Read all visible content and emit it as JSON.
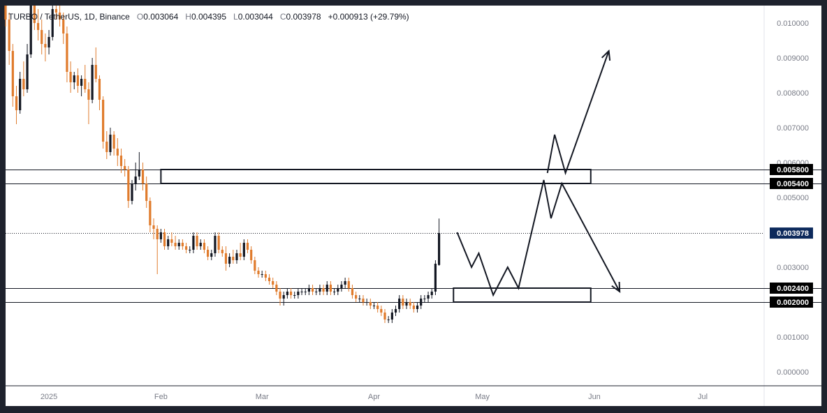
{
  "header": {
    "symbol": "TURBO / TetherUS, 1D, Binance",
    "o_label": "O",
    "o": "0.003064",
    "h_label": "H",
    "h": "0.004395",
    "l_label": "L",
    "l": "0.003044",
    "c_label": "C",
    "c": "0.003978",
    "change": "+0.000913 (+29.79%)"
  },
  "colors": {
    "up": "#131722",
    "down": "#e07b2c",
    "bg": "#ffffff",
    "frame": "#1e222d",
    "last_price": "#0d2a5c"
  },
  "chart_data": {
    "type": "candlestick",
    "title": "TURBO / TetherUS, 1D, Binance",
    "y_axis": {
      "min": -0.0004,
      "max": 0.0105,
      "ticks": [
        "0.000000",
        "0.001000",
        "0.002000",
        "0.003000",
        "0.004000",
        "0.005000",
        "0.006000",
        "0.007000",
        "0.008000",
        "0.009000",
        "0.010000"
      ]
    },
    "x_axis": {
      "start": "2024-12-20",
      "end": "2025-07-18",
      "ticks": [
        {
          "label": "2025",
          "date": "2025-01-01"
        },
        {
          "label": "Feb",
          "date": "2025-02-01"
        },
        {
          "label": "Mar",
          "date": "2025-03-01"
        },
        {
          "label": "Apr",
          "date": "2025-04-01"
        },
        {
          "label": "May",
          "date": "2025-05-01"
        },
        {
          "label": "Jun",
          "date": "2025-06-01"
        },
        {
          "label": "Jul",
          "date": "2025-07-01"
        }
      ]
    },
    "candles_start_date": "2024-12-20",
    "candles": [
      [
        0.0112,
        0.0116,
        0.0099,
        0.0101
      ],
      [
        0.0101,
        0.0103,
        0.0088,
        0.0092
      ],
      [
        0.0092,
        0.0094,
        0.0076,
        0.0079
      ],
      [
        0.0079,
        0.0082,
        0.0071,
        0.0075
      ],
      [
        0.0075,
        0.0086,
        0.0074,
        0.0084
      ],
      [
        0.0084,
        0.0089,
        0.0079,
        0.0081
      ],
      [
        0.0081,
        0.0094,
        0.008,
        0.0091
      ],
      [
        0.0091,
        0.0108,
        0.009,
        0.0105
      ],
      [
        0.0105,
        0.0113,
        0.0098,
        0.01
      ],
      [
        0.01,
        0.0104,
        0.0095,
        0.0098
      ],
      [
        0.0098,
        0.0101,
        0.0091,
        0.0094
      ],
      [
        0.0094,
        0.0097,
        0.0089,
        0.0093
      ],
      [
        0.0093,
        0.0098,
        0.0091,
        0.0096
      ],
      [
        0.0096,
        0.0107,
        0.0095,
        0.0104
      ],
      [
        0.0104,
        0.011,
        0.0101,
        0.0103
      ],
      [
        0.0103,
        0.0105,
        0.0099,
        0.0101
      ],
      [
        0.0101,
        0.0103,
        0.0094,
        0.0097
      ],
      [
        0.0097,
        0.0099,
        0.0083,
        0.0086
      ],
      [
        0.0086,
        0.0089,
        0.008,
        0.0083
      ],
      [
        0.0083,
        0.0086,
        0.0081,
        0.0085
      ],
      [
        0.0085,
        0.0087,
        0.008,
        0.0082
      ],
      [
        0.0082,
        0.0085,
        0.0079,
        0.0084
      ],
      [
        0.0084,
        0.0088,
        0.008,
        0.0081
      ],
      [
        0.0081,
        0.0083,
        0.0071,
        0.0078
      ],
      [
        0.0078,
        0.009,
        0.0077,
        0.0088
      ],
      [
        0.0088,
        0.0093,
        0.0083,
        0.0084
      ],
      [
        0.0084,
        0.0085,
        0.0075,
        0.0078
      ],
      [
        0.0078,
        0.0079,
        0.0064,
        0.0066
      ],
      [
        0.0066,
        0.0069,
        0.0061,
        0.0063
      ],
      [
        0.0063,
        0.007,
        0.0062,
        0.0068
      ],
      [
        0.0068,
        0.0069,
        0.0062,
        0.0064
      ],
      [
        0.0064,
        0.0067,
        0.0059,
        0.0062
      ],
      [
        0.0062,
        0.0064,
        0.0057,
        0.0059
      ],
      [
        0.0059,
        0.0061,
        0.0056,
        0.0058
      ],
      [
        0.0058,
        0.0059,
        0.0047,
        0.0049
      ],
      [
        0.0049,
        0.0055,
        0.0048,
        0.0054
      ],
      [
        0.0054,
        0.006,
        0.0052,
        0.0056
      ],
      [
        0.0056,
        0.0063,
        0.0055,
        0.0058
      ],
      [
        0.0058,
        0.006,
        0.0052,
        0.0054
      ],
      [
        0.0054,
        0.0056,
        0.0047,
        0.0049
      ],
      [
        0.0049,
        0.005,
        0.004,
        0.0042
      ],
      [
        0.0042,
        0.0044,
        0.0038,
        0.0041
      ],
      [
        0.0041,
        0.0042,
        0.0028,
        0.0038
      ],
      [
        0.0038,
        0.0041,
        0.0037,
        0.004
      ],
      [
        0.004,
        0.0041,
        0.0035,
        0.0036
      ],
      [
        0.0036,
        0.0039,
        0.0035,
        0.0038
      ],
      [
        0.0038,
        0.004,
        0.0036,
        0.0037
      ],
      [
        0.0037,
        0.0039,
        0.0035,
        0.0036
      ],
      [
        0.0036,
        0.0038,
        0.0035,
        0.0037
      ],
      [
        0.0037,
        0.0038,
        0.0035,
        0.0036
      ],
      [
        0.0036,
        0.0037,
        0.0034,
        0.0035
      ],
      [
        0.0035,
        0.0036,
        0.0034,
        0.0035
      ],
      [
        0.0035,
        0.004,
        0.0034,
        0.0039
      ],
      [
        0.0039,
        0.004,
        0.0035,
        0.0036
      ],
      [
        0.0036,
        0.0038,
        0.0035,
        0.0037
      ],
      [
        0.0037,
        0.0038,
        0.0034,
        0.0035
      ],
      [
        0.0035,
        0.0036,
        0.0032,
        0.0033
      ],
      [
        0.0033,
        0.0035,
        0.0032,
        0.0034
      ],
      [
        0.0034,
        0.004,
        0.0033,
        0.0039
      ],
      [
        0.0039,
        0.004,
        0.0034,
        0.0035
      ],
      [
        0.0035,
        0.0036,
        0.0033,
        0.0034
      ],
      [
        0.0034,
        0.0036,
        0.0029,
        0.0031
      ],
      [
        0.0031,
        0.0034,
        0.003,
        0.0033
      ],
      [
        0.0033,
        0.0035,
        0.0031,
        0.0032
      ],
      [
        0.0032,
        0.0035,
        0.0031,
        0.0034
      ],
      [
        0.0034,
        0.0037,
        0.0032,
        0.0033
      ],
      [
        0.0033,
        0.0038,
        0.0032,
        0.0037
      ],
      [
        0.0037,
        0.0038,
        0.0034,
        0.0035
      ],
      [
        0.0035,
        0.0036,
        0.0031,
        0.0032
      ],
      [
        0.0032,
        0.0033,
        0.0028,
        0.0029
      ],
      [
        0.0029,
        0.003,
        0.0027,
        0.0028
      ],
      [
        0.0028,
        0.0029,
        0.0027,
        0.0028
      ],
      [
        0.0028,
        0.0029,
        0.0026,
        0.0027
      ],
      [
        0.0027,
        0.0028,
        0.0025,
        0.0026
      ],
      [
        0.0026,
        0.0027,
        0.0024,
        0.0025
      ],
      [
        0.0025,
        0.0026,
        0.0022,
        0.0023
      ],
      [
        0.0023,
        0.0024,
        0.0019,
        0.0021
      ],
      [
        0.0021,
        0.0023,
        0.0019,
        0.0022
      ],
      [
        0.0022,
        0.0024,
        0.0021,
        0.0023
      ],
      [
        0.0023,
        0.0024,
        0.0021,
        0.0022
      ],
      [
        0.0022,
        0.0023,
        0.0021,
        0.0022
      ],
      [
        0.0022,
        0.0024,
        0.0021,
        0.0023
      ],
      [
        0.0023,
        0.0024,
        0.0022,
        0.0023
      ],
      [
        0.0023,
        0.0024,
        0.0022,
        0.0023
      ],
      [
        0.0023,
        0.0025,
        0.0022,
        0.0024
      ],
      [
        0.0024,
        0.0025,
        0.0022,
        0.0023
      ],
      [
        0.0023,
        0.0024,
        0.0022,
        0.0023
      ],
      [
        0.0023,
        0.0025,
        0.0022,
        0.0024
      ],
      [
        0.0024,
        0.0025,
        0.0022,
        0.0023
      ],
      [
        0.0023,
        0.0026,
        0.0022,
        0.0025
      ],
      [
        0.0025,
        0.0026,
        0.0022,
        0.0023
      ],
      [
        0.0023,
        0.0024,
        0.0022,
        0.0023
      ],
      [
        0.0023,
        0.0025,
        0.0022,
        0.0024
      ],
      [
        0.0024,
        0.0026,
        0.0023,
        0.0025
      ],
      [
        0.0025,
        0.0027,
        0.0024,
        0.0026
      ],
      [
        0.0026,
        0.0027,
        0.0023,
        0.0024
      ],
      [
        0.0024,
        0.0025,
        0.0021,
        0.0022
      ],
      [
        0.0022,
        0.0023,
        0.002,
        0.0021
      ],
      [
        0.0021,
        0.0022,
        0.002,
        0.0021
      ],
      [
        0.0021,
        0.0022,
        0.0019,
        0.002
      ],
      [
        0.002,
        0.0021,
        0.0019,
        0.002
      ],
      [
        0.002,
        0.0021,
        0.0018,
        0.0019
      ],
      [
        0.0019,
        0.002,
        0.0018,
        0.0019
      ],
      [
        0.0019,
        0.002,
        0.0017,
        0.0018
      ],
      [
        0.0018,
        0.0019,
        0.0016,
        0.0017
      ],
      [
        0.0017,
        0.0018,
        0.0014,
        0.0015
      ],
      [
        0.0015,
        0.0016,
        0.0014,
        0.0015
      ],
      [
        0.0015,
        0.0018,
        0.0014,
        0.0017
      ],
      [
        0.0017,
        0.0019,
        0.0016,
        0.0018
      ],
      [
        0.0018,
        0.0022,
        0.0017,
        0.0021
      ],
      [
        0.0021,
        0.0022,
        0.0018,
        0.0019
      ],
      [
        0.0019,
        0.0021,
        0.0018,
        0.002
      ],
      [
        0.002,
        0.0021,
        0.0018,
        0.0019
      ],
      [
        0.0019,
        0.002,
        0.0017,
        0.0018
      ],
      [
        0.0018,
        0.002,
        0.0017,
        0.0019
      ],
      [
        0.0019,
        0.0022,
        0.0018,
        0.0021
      ],
      [
        0.0021,
        0.0022,
        0.002,
        0.0021
      ],
      [
        0.0021,
        0.0023,
        0.002,
        0.0022
      ],
      [
        0.0022,
        0.0024,
        0.0021,
        0.0023
      ],
      [
        0.0023,
        0.0032,
        0.0022,
        0.0031
      ],
      [
        0.003064,
        0.004395,
        0.003044,
        0.003978
      ]
    ],
    "zones": [
      {
        "top": 0.0058,
        "bottom": 0.0054,
        "from": "2025-02-01",
        "to": "2025-05-31"
      },
      {
        "top": 0.0024,
        "bottom": 0.002,
        "from": "2025-04-23",
        "to": "2025-05-31"
      }
    ],
    "levels": [
      {
        "value": 0.0058,
        "label": "0.005800"
      },
      {
        "value": 0.0054,
        "label": "0.005400"
      },
      {
        "value": 0.0024,
        "label": "0.002400"
      },
      {
        "value": 0.002,
        "label": "0.002000"
      }
    ],
    "last_price": {
      "value": 0.003978,
      "label": "0.003978"
    },
    "projection_paths": [
      {
        "points": [
          [
            "2025-04-24",
            0.004
          ],
          [
            "2025-04-28",
            0.003
          ],
          [
            "2025-04-30",
            0.0034
          ],
          [
            "2025-05-04",
            0.0022
          ],
          [
            "2025-05-08",
            0.003
          ],
          [
            "2025-05-11",
            0.0024
          ],
          [
            "2025-05-18",
            0.0055
          ],
          [
            "2025-05-20",
            0.0044
          ],
          [
            "2025-05-23",
            0.0054
          ],
          [
            "2025-06-08",
            0.0023
          ]
        ],
        "arrow": true
      },
      {
        "points": [
          [
            "2025-05-19",
            0.0057
          ],
          [
            "2025-05-21",
            0.0068
          ],
          [
            "2025-05-24",
            0.0057
          ],
          [
            "2025-06-05",
            0.0092
          ]
        ],
        "arrow": true
      }
    ]
  }
}
